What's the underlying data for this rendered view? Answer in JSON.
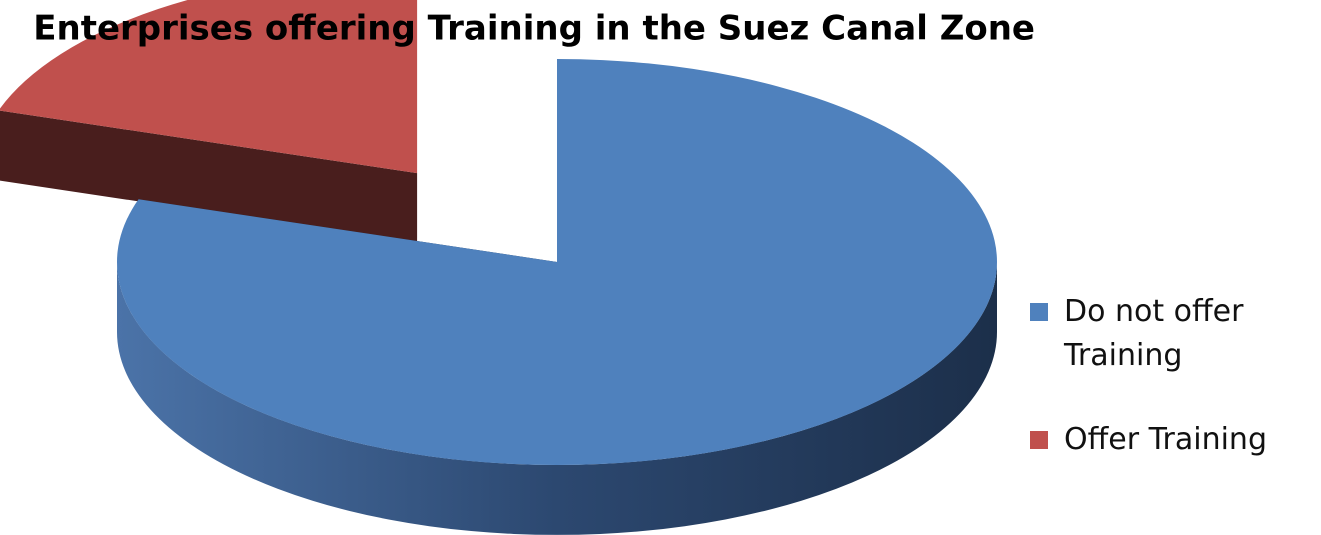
{
  "chart_data": {
    "type": "pie",
    "title": "Enterprises offering Training in the Suez Canal Zone",
    "categories": [
      "Do not offer Training",
      "Offer Training"
    ],
    "values": [
      80,
      20
    ],
    "colors": [
      "#4f81bd",
      "#c0504d"
    ],
    "legend": "right"
  }
}
